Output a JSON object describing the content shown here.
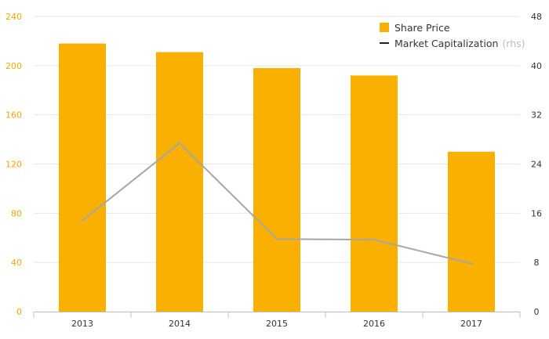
{
  "chart_data": {
    "type": "bar",
    "categories": [
      "2013",
      "2014",
      "2015",
      "2016",
      "2017"
    ],
    "series": [
      {
        "name": "Share Price",
        "type": "bar",
        "axis": "left",
        "color": "#f9b000",
        "values": [
          218,
          211,
          198,
          192,
          130
        ]
      },
      {
        "name": "Market Capitalization",
        "type": "line",
        "axis": "right",
        "color": "#a6a6a6",
        "values": [
          14.8,
          27.4,
          11.8,
          11.7,
          7.8
        ]
      }
    ],
    "legend": {
      "placement": "top-right",
      "items": [
        {
          "label": "Share Price",
          "note": ""
        },
        {
          "label": "Market Capitalization",
          "note": "(rhs)"
        }
      ]
    },
    "y_left": {
      "ylim": [
        0,
        240
      ],
      "ticks": [
        "0",
        "40",
        "80",
        "120",
        "160",
        "200",
        "240"
      ],
      "color": "#f5a800"
    },
    "y_right": {
      "ylim": [
        0,
        48
      ],
      "ticks": [
        "0",
        "8",
        "16",
        "24",
        "32",
        "40",
        "48"
      ]
    },
    "grid": true
  }
}
